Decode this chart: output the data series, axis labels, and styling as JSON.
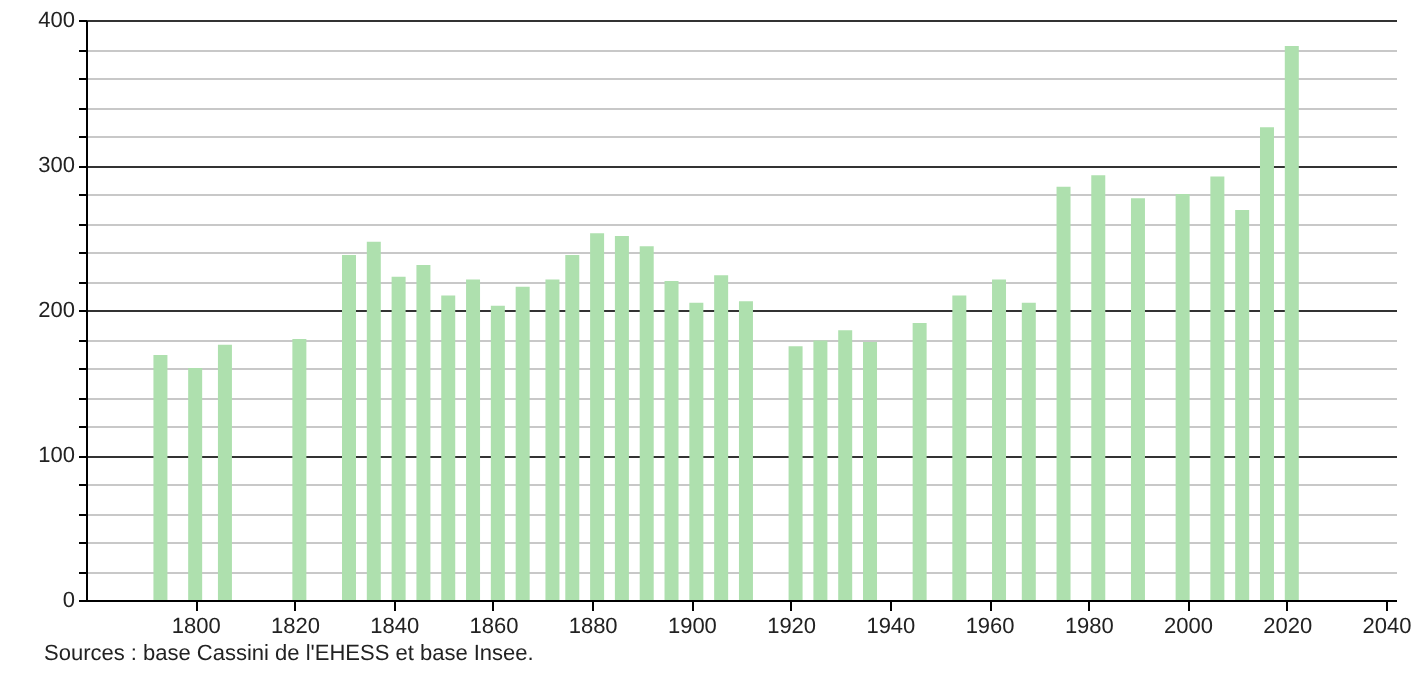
{
  "chart_data": {
    "type": "bar",
    "color": "#aee0ae",
    "x": [
      1793,
      1800,
      1806,
      1821,
      1831,
      1836,
      1841,
      1846,
      1851,
      1856,
      1861,
      1866,
      1872,
      1876,
      1881,
      1886,
      1891,
      1896,
      1901,
      1906,
      1911,
      1921,
      1926,
      1931,
      1936,
      1946,
      1954,
      1962,
      1968,
      1975,
      1982,
      1990,
      1999,
      2006,
      2011,
      2016,
      2021
    ],
    "values": [
      169,
      160,
      176,
      180,
      238,
      247,
      223,
      231,
      210,
      221,
      203,
      216,
      221,
      238,
      253,
      251,
      244,
      220,
      205,
      224,
      206,
      175,
      179,
      186,
      178,
      191,
      210,
      221,
      205,
      285,
      293,
      277,
      280,
      292,
      269,
      326,
      382
    ],
    "xlim": [
      1778,
      2042
    ],
    "xticks": [
      1800,
      1820,
      1840,
      1860,
      1880,
      1900,
      1920,
      1940,
      1960,
      1980,
      2000,
      2020,
      2040
    ],
    "ylim": [
      0,
      400
    ],
    "yticks": [
      0,
      {
        "value": 20,
        "label": null
      },
      {
        "value": 40,
        "label": null
      },
      {
        "value": 60,
        "label": null
      },
      {
        "value": 80,
        "label": null
      },
      100,
      {
        "value": 120,
        "label": null
      },
      {
        "value": 140,
        "label": null
      },
      {
        "value": 160,
        "label": null
      },
      {
        "value": 180,
        "label": null
      },
      200,
      {
        "value": 220,
        "label": null
      },
      {
        "value": 240,
        "label": null
      },
      {
        "value": 260,
        "label": null
      },
      {
        "value": 280,
        "label": null
      },
      300,
      {
        "value": 320,
        "label": null
      },
      {
        "value": 340,
        "label": null
      },
      {
        "value": 360,
        "label": null
      },
      {
        "value": 380,
        "label": null
      },
      400
    ],
    "grid": "y",
    "annotations": [
      "Sources : base Cassini de l'EHESS et base Insee."
    ]
  }
}
